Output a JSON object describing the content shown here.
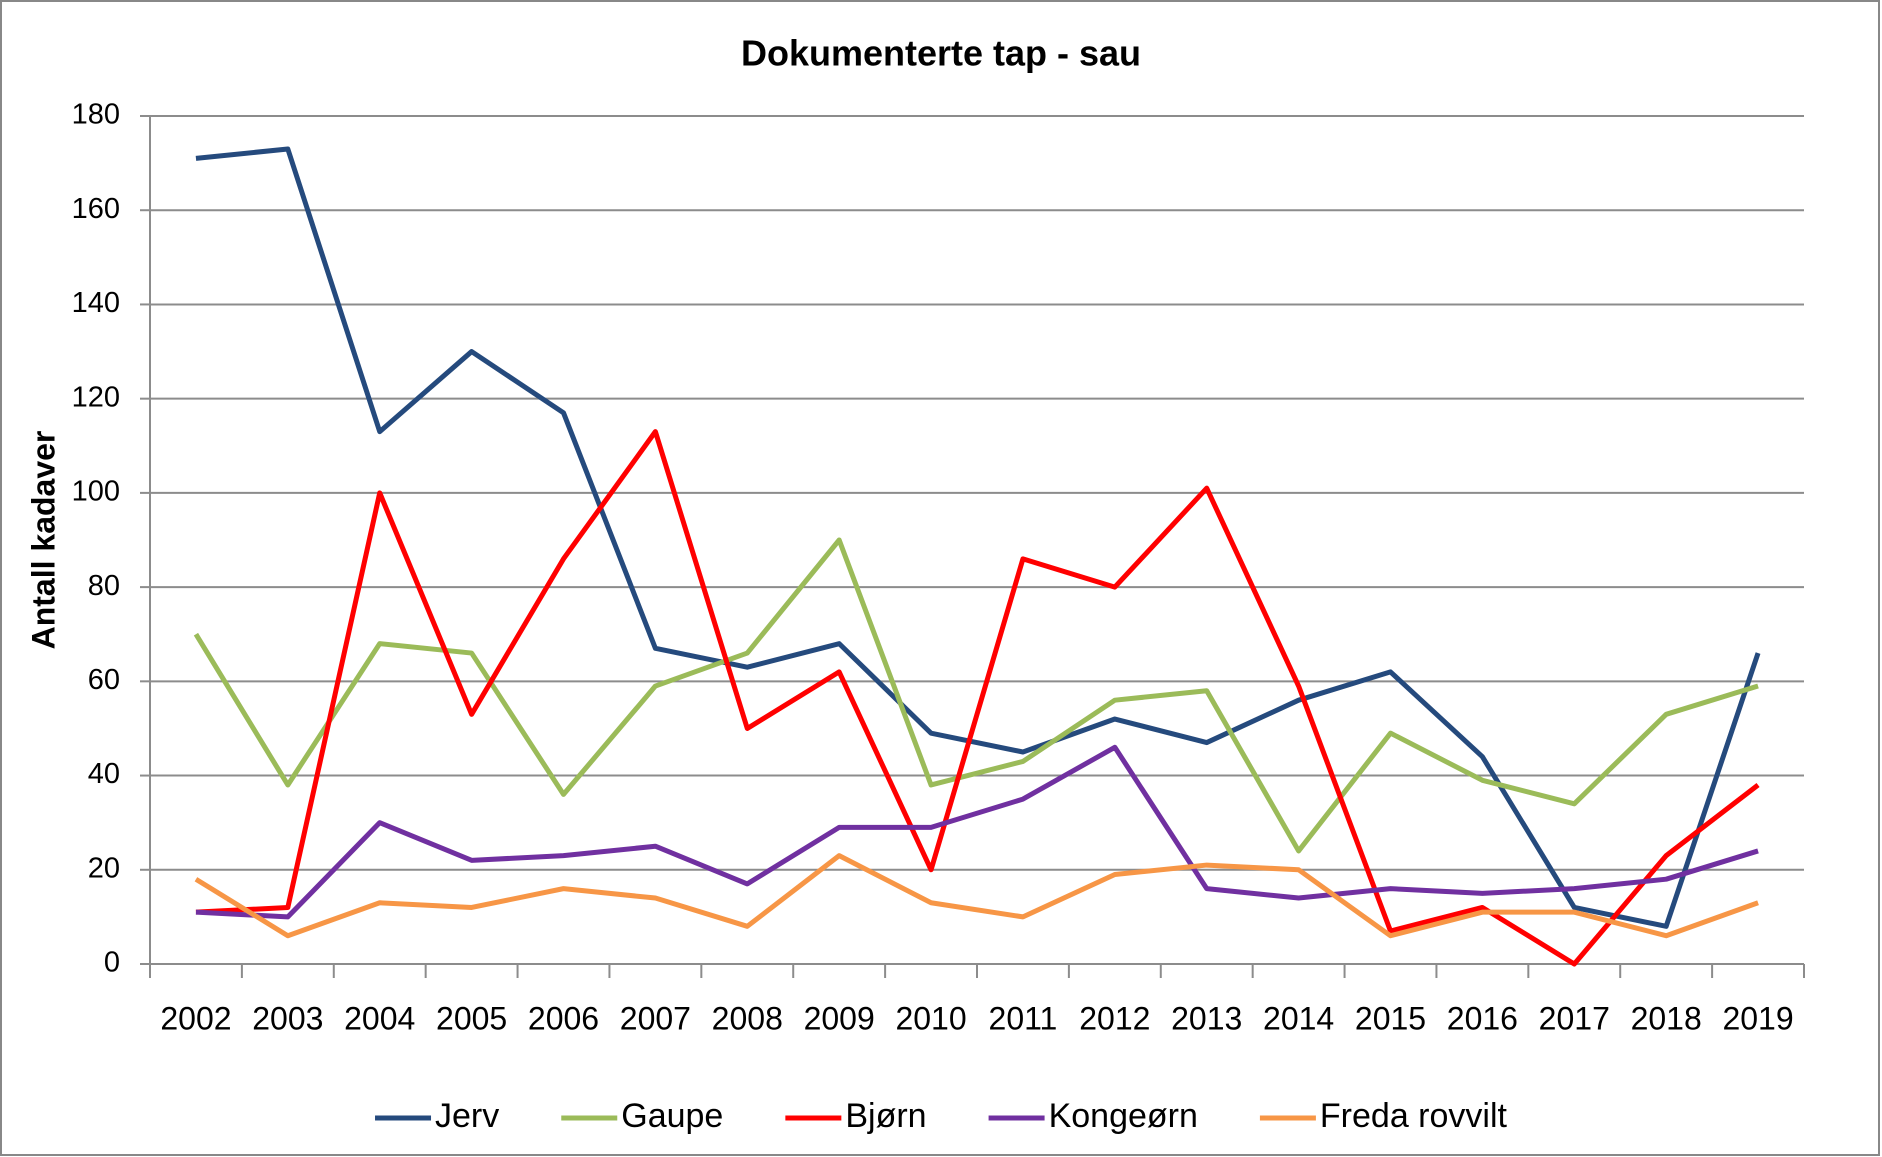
{
  "chart_data": {
    "type": "line",
    "title": "Dokumenterte tap - sau",
    "y_label": "Antall kadaver",
    "categories": [
      "2002",
      "2003",
      "2004",
      "2005",
      "2006",
      "2007",
      "2008",
      "2009",
      "2010",
      "2011",
      "2012",
      "2013",
      "2014",
      "2015",
      "2016",
      "2017",
      "2018",
      "2019"
    ],
    "series": [
      {
        "name": "Jerv",
        "color": "#254a7d",
        "values": [
          171,
          173,
          113,
          130,
          117,
          67,
          63,
          68,
          49,
          45,
          52,
          47,
          56,
          62,
          44,
          12,
          8,
          66
        ]
      },
      {
        "name": "Gaupe",
        "color": "#9bbb59",
        "values": [
          70,
          38,
          68,
          66,
          36,
          59,
          66,
          90,
          38,
          43,
          56,
          58,
          24,
          49,
          39,
          34,
          53,
          59
        ]
      },
      {
        "name": "Bjørn",
        "color": "#ff0000",
        "values": [
          11,
          12,
          100,
          53,
          86,
          113,
          50,
          62,
          20,
          86,
          80,
          101,
          59,
          7,
          12,
          0,
          23,
          38
        ]
      },
      {
        "name": "Kongeørn",
        "color": "#7030a0",
        "values": [
          11,
          10,
          30,
          22,
          23,
          25,
          17,
          29,
          29,
          35,
          46,
          16,
          14,
          16,
          15,
          16,
          18,
          24
        ]
      },
      {
        "name": "Freda rovvilt",
        "color": "#f79646",
        "values": [
          18,
          6,
          13,
          12,
          16,
          14,
          8,
          23,
          13,
          10,
          19,
          21,
          20,
          6,
          11,
          11,
          6,
          13
        ]
      }
    ],
    "ylim": [
      0,
      180
    ],
    "yticks": [
      0,
      20,
      40,
      60,
      80,
      100,
      120,
      140,
      160,
      180
    ],
    "grid": true,
    "legend": "bottom"
  }
}
